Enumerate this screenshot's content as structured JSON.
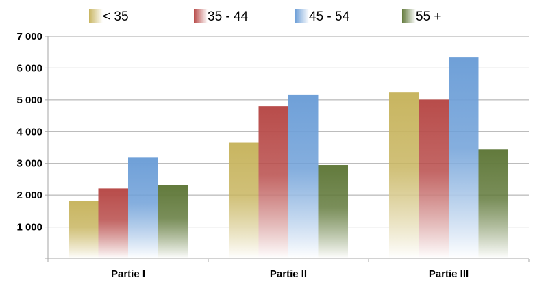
{
  "chart_data": {
    "type": "bar",
    "categories": [
      "Partie I",
      "Partie II",
      "Partie III"
    ],
    "series": [
      {
        "name": "< 35",
        "values": [
          1830,
          3650,
          5230
        ],
        "color": "#c8b560"
      },
      {
        "name": "35 - 44",
        "values": [
          2210,
          4800,
          5010
        ],
        "color": "#b84c4a"
      },
      {
        "name": "45 - 54",
        "values": [
          3180,
          5150,
          6330
        ],
        "color": "#6fa0d8"
      },
      {
        "name": "55 +",
        "values": [
          2320,
          2950,
          3440
        ],
        "color": "#627a3c"
      }
    ],
    "ylim": [
      0,
      7000
    ],
    "yticks": [
      1000,
      2000,
      3000,
      4000,
      5000,
      6000,
      7000
    ],
    "ytick_labels": [
      "1 000",
      "2 000",
      "3 000",
      "4 000",
      "5 000",
      "6 000",
      "7 000"
    ],
    "title": "",
    "xlabel": "",
    "ylabel": "",
    "grid": true,
    "legend_position": "top"
  }
}
